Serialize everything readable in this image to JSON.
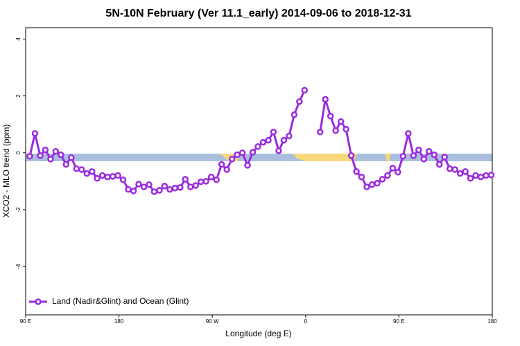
{
  "chart_data": {
    "type": "line",
    "title": "5N-10N February (Ver 11.1_early)   2014-09-06 to 2018-12-31",
    "x_label": "Longitude (deg E)",
    "y_label": "XCO2 - MLO trend (ppm)",
    "xlim": [
      90,
      540
    ],
    "ylim": [
      -5.7,
      4.4
    ],
    "xticks": [
      {
        "value": 90,
        "label": "90 E"
      },
      {
        "value": 180,
        "label": "180"
      },
      {
        "value": 270,
        "label": "90 W"
      },
      {
        "value": 360,
        "label": "0"
      },
      {
        "value": 450,
        "label": "90 E"
      },
      {
        "value": 540,
        "label": "180"
      }
    ],
    "yticks": [
      -4,
      -2,
      0,
      2,
      4
    ],
    "legend": "bottom-left",
    "x": [
      94,
      99,
      104,
      109,
      114,
      119,
      124,
      129,
      134,
      139,
      144,
      149,
      154,
      159,
      164,
      169,
      174,
      179,
      184,
      189,
      194,
      199,
      204,
      209,
      214,
      219,
      224,
      229,
      234,
      239,
      244,
      249,
      254,
      259,
      264,
      269,
      274,
      279,
      284,
      289,
      294,
      299,
      304,
      309,
      314,
      319,
      324,
      329,
      334,
      339,
      344,
      349,
      354,
      359,
      364,
      369,
      374,
      379,
      384,
      389,
      394,
      399,
      404,
      409,
      414,
      419,
      424,
      429,
      434,
      439,
      444,
      449,
      454,
      459,
      464,
      469,
      474,
      479,
      484,
      489,
      494,
      499,
      504,
      509,
      514,
      519,
      524,
      529,
      534,
      539
    ],
    "series": [
      {
        "name": "Land (Nadir&Glint) and Ocean (Glint)",
        "color": "#9a2ae0",
        "values": [
          -0.12,
          0.68,
          -0.1,
          0.1,
          -0.22,
          0.05,
          -0.07,
          -0.41,
          -0.17,
          -0.56,
          -0.59,
          -0.73,
          -0.66,
          -0.9,
          -0.8,
          -0.85,
          -0.83,
          -0.8,
          -0.95,
          -1.29,
          -1.34,
          -1.1,
          -1.2,
          -1.12,
          -1.37,
          -1.32,
          -1.17,
          -1.29,
          -1.24,
          -1.22,
          -0.93,
          -1.2,
          -1.15,
          -1.02,
          -1.0,
          -0.85,
          -0.95,
          -0.41,
          -0.59,
          -0.22,
          -0.07,
          0.0,
          -0.44,
          0.02,
          0.22,
          0.37,
          0.44,
          0.73,
          0.07,
          0.44,
          0.59,
          1.34,
          1.8,
          2.2,
          null,
          null,
          0.73,
          1.88,
          1.29,
          0.78,
          1.1,
          0.83,
          -0.1,
          -0.66,
          -0.85,
          -1.2,
          -1.12,
          -1.07,
          -0.93,
          -0.8,
          -0.54,
          -0.68,
          -0.12,
          0.68,
          -0.1,
          0.1,
          -0.22,
          0.05,
          -0.07,
          -0.41,
          -0.15,
          -0.56,
          -0.59,
          -0.73,
          -0.66,
          -0.9,
          -0.8,
          -0.85,
          -0.8,
          -0.78
        ]
      }
    ]
  }
}
